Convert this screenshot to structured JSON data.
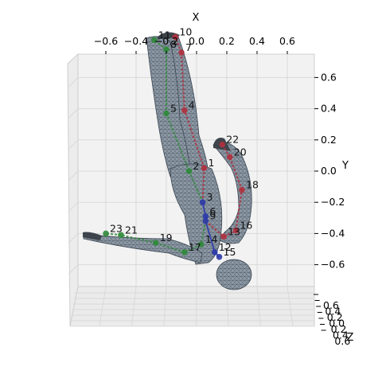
{
  "chart_data": {
    "type": "scatter",
    "projection": "3d",
    "axes": {
      "x": {
        "label": "X",
        "ticks": [
          "−0.6",
          "−0.4",
          "−0.2",
          "0.0",
          "0.2",
          "0.4",
          "0.6"
        ],
        "range": [
          -0.75,
          0.75
        ]
      },
      "y": {
        "label": "Y",
        "ticks": [
          "0.6",
          "0.4",
          "0.2",
          "0.0",
          "−0.2",
          "−0.4",
          "−0.6"
        ],
        "range": [
          -0.75,
          0.75
        ]
      },
      "z": {
        "label": "Z",
        "ticks": [
          "0.6",
          "0.4",
          "0.2",
          "0.0",
          "0.2",
          "0.4",
          "0.6"
        ],
        "range": [
          -0.6,
          0.6
        ]
      }
    },
    "grid": true,
    "background": "mesh-of-human-body",
    "joints": [
      {
        "id": "1",
        "x": 0.05,
        "y": 0.02,
        "side": "right"
      },
      {
        "id": "2",
        "x": -0.05,
        "y": 0.0,
        "side": "left"
      },
      {
        "id": "3",
        "x": 0.04,
        "y": -0.2,
        "side": "center"
      },
      {
        "id": "4",
        "x": -0.08,
        "y": 0.39,
        "side": "right"
      },
      {
        "id": "5",
        "x": -0.2,
        "y": 0.37,
        "side": "left"
      },
      {
        "id": "6",
        "x": 0.06,
        "y": -0.29,
        "side": "center"
      },
      {
        "id": "7",
        "x": -0.1,
        "y": 0.76,
        "side": "right"
      },
      {
        "id": "8",
        "x": -0.2,
        "y": 0.78,
        "side": "left"
      },
      {
        "id": "9",
        "x": 0.06,
        "y": -0.32,
        "side": "center"
      },
      {
        "id": "10",
        "x": -0.14,
        "y": 0.86,
        "side": "right"
      },
      {
        "id": "11",
        "x": -0.28,
        "y": 0.84,
        "side": "left"
      },
      {
        "id": "12",
        "x": 0.12,
        "y": -0.52,
        "side": "center"
      },
      {
        "id": "13",
        "x": 0.18,
        "y": -0.42,
        "side": "right"
      },
      {
        "id": "14",
        "x": 0.03,
        "y": -0.47,
        "side": "left"
      },
      {
        "id": "15",
        "x": 0.15,
        "y": -0.55,
        "side": "center"
      },
      {
        "id": "16",
        "x": 0.26,
        "y": -0.38,
        "side": "right"
      },
      {
        "id": "17",
        "x": -0.08,
        "y": -0.52,
        "side": "left"
      },
      {
        "id": "18",
        "x": 0.3,
        "y": -0.12,
        "side": "right"
      },
      {
        "id": "19",
        "x": -0.27,
        "y": -0.46,
        "side": "left"
      },
      {
        "id": "20",
        "x": 0.22,
        "y": 0.09,
        "side": "right"
      },
      {
        "id": "21",
        "x": -0.5,
        "y": -0.41,
        "side": "left"
      },
      {
        "id": "22",
        "x": 0.17,
        "y": 0.17,
        "side": "right"
      },
      {
        "id": "23",
        "x": -0.6,
        "y": -0.4,
        "side": "left"
      }
    ],
    "bones": [
      [
        "1",
        "4"
      ],
      [
        "4",
        "7"
      ],
      [
        "7",
        "10"
      ],
      [
        "2",
        "5"
      ],
      [
        "5",
        "8"
      ],
      [
        "8",
        "11"
      ],
      [
        "3",
        "6"
      ],
      [
        "6",
        "9"
      ],
      [
        "9",
        "12"
      ],
      [
        "12",
        "15"
      ],
      [
        "1",
        "3"
      ],
      [
        "2",
        "3"
      ],
      [
        "13",
        "16"
      ],
      [
        "16",
        "18"
      ],
      [
        "18",
        "20"
      ],
      [
        "20",
        "22"
      ],
      [
        "14",
        "17"
      ],
      [
        "17",
        "19"
      ],
      [
        "19",
        "21"
      ],
      [
        "21",
        "23"
      ],
      [
        "9",
        "13"
      ],
      [
        "9",
        "14"
      ]
    ],
    "colors": {
      "right": "#b0313f",
      "left": "#2f8a3a",
      "center": "#2c3aa8",
      "mesh": "#8e9aa6",
      "mesh_edge": "#3b4652",
      "pane": "#f2f2f2",
      "grid": "#d9d9d9"
    }
  }
}
